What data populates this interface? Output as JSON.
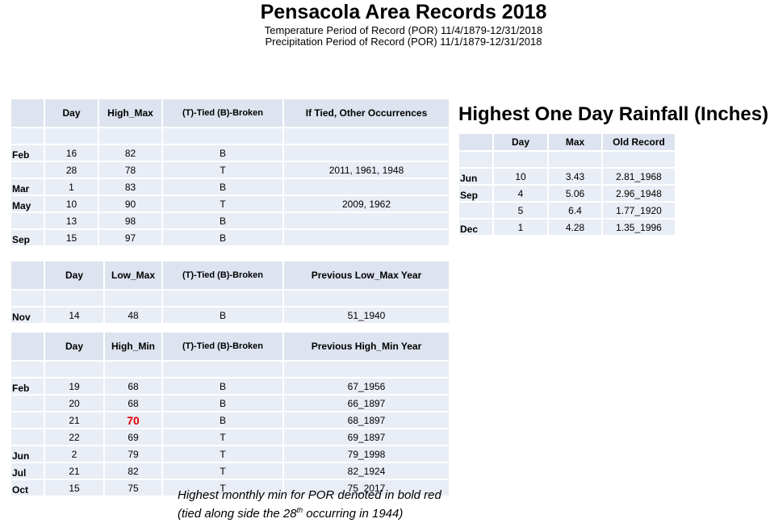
{
  "header": {
    "title": "Pensacola Area Records 2018",
    "subtitle1": "Temperature Period of Record (POR) 11/4/1879-12/31/2018",
    "subtitle2": "Precipitation Period of Record (POR) 11/1/1879-12/31/2018"
  },
  "high_max": {
    "headers": [
      "",
      "Day",
      "High_Max",
      "(T)-Tied (B)-Broken",
      "If Tied, Other Occurrences"
    ],
    "rows": [
      [
        "",
        "",
        "",
        "",
        ""
      ],
      [
        "Feb",
        "16",
        "82",
        "B",
        ""
      ],
      [
        "",
        "28",
        "78",
        "T",
        "2011, 1961, 1948"
      ],
      [
        "Mar",
        "1",
        "83",
        "B",
        ""
      ],
      [
        "May",
        "10",
        "90",
        "T",
        "2009, 1962"
      ],
      [
        "",
        "13",
        "98",
        "B",
        ""
      ],
      [
        "Sep",
        "15",
        "97",
        "B",
        ""
      ]
    ]
  },
  "low_max": {
    "headers": [
      "",
      "Day",
      "Low_Max",
      "(T)-Tied (B)-Broken",
      "Previous Low_Max Year"
    ],
    "rows": [
      [
        "",
        "",
        "",
        "",
        ""
      ],
      [
        "Nov",
        "14",
        "48",
        "B",
        "51_1940"
      ]
    ]
  },
  "high_min": {
    "headers": [
      "",
      "Day",
      "High_Min",
      "(T)-Tied (B)-Broken",
      "Previous High_Min Year"
    ],
    "rows": [
      [
        "",
        "",
        "",
        "",
        ""
      ],
      [
        "Feb",
        "19",
        "68",
        "B",
        "67_1956"
      ],
      [
        "",
        "20",
        "68",
        "B",
        "66_1897"
      ],
      [
        "",
        "21",
        "70",
        "B",
        "68_1897"
      ],
      [
        "",
        "22",
        "69",
        "T",
        "69_1897"
      ],
      [
        "Jun",
        "2",
        "79",
        "T",
        "79_1998"
      ],
      [
        "Jul",
        "21",
        "82",
        "T",
        "82_1924"
      ],
      [
        "Oct",
        "15",
        "75",
        "T",
        "75_2017"
      ]
    ]
  },
  "rainfall": {
    "title": "Highest One Day Rainfall (Inches)",
    "headers": [
      "",
      "Day",
      "Max",
      "Old Record"
    ],
    "rows": [
      [
        "",
        "",
        "",
        ""
      ],
      [
        "Jun",
        "10",
        "3.43",
        "2.81_1968"
      ],
      [
        "Sep",
        "4",
        "5.06",
        "2.96_1948"
      ],
      [
        "",
        "5",
        "6.4",
        "1.77_1920"
      ],
      [
        "Dec",
        "1",
        "4.28",
        "1.35_1996"
      ]
    ]
  },
  "footnote": {
    "line1": "Highest monthly min for POR denoted in bold red",
    "line2_a": "(tied along side the 28",
    "line2_sup": "th",
    "line2_b": " occurring in 1944)"
  },
  "colors": {
    "highlight": "#e00000",
    "cell_bg": "#e9edf5",
    "header_bg": "#dde3ef"
  }
}
